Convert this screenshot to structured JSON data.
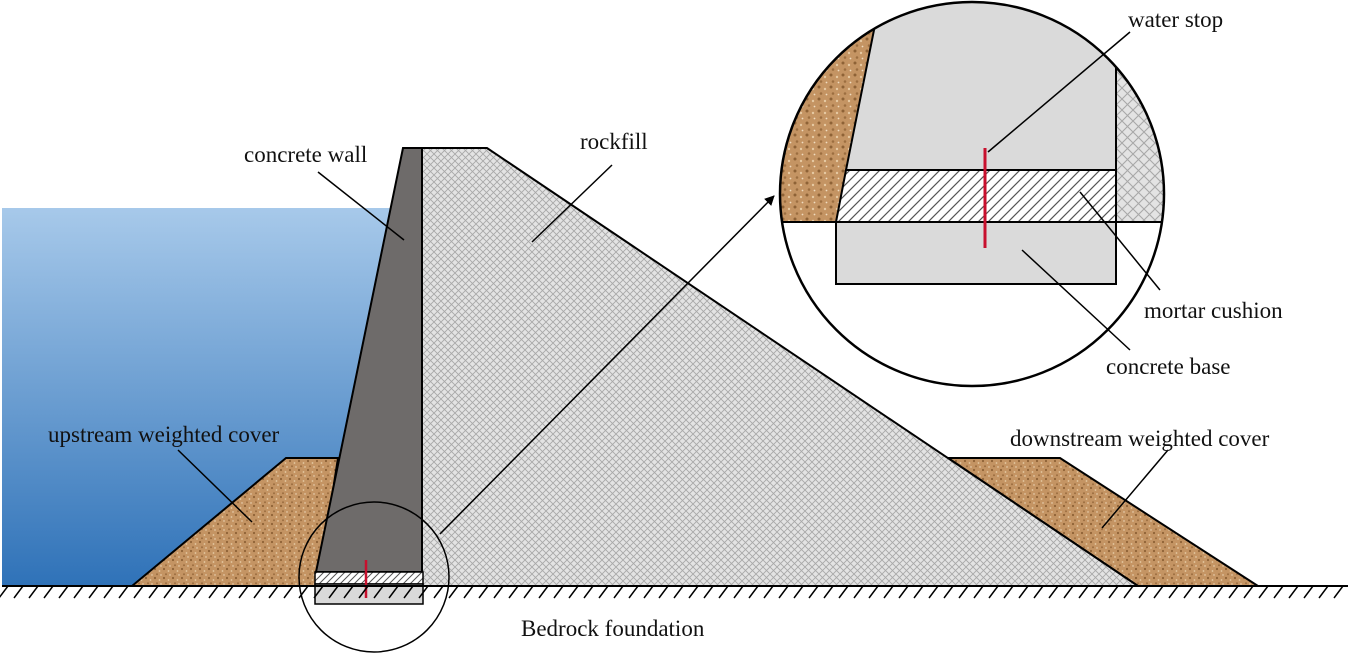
{
  "labels": {
    "concrete_wall": "concrete wall",
    "rockfill": "rockfill",
    "water_stop": "water stop",
    "mortar_cushion": "mortar cushion",
    "concrete_base": "concrete base",
    "upstream_cover": "upstream weighted cover",
    "downstream_cover": "downstream weighted cover",
    "bedrock": "Bedrock foundation"
  },
  "colors": {
    "water_top": "#a7c9ea",
    "water_bottom": "#2f72b8",
    "concrete_wall": "#6e6b6a",
    "rockfill": "#e0e0e0",
    "cover": "#c0935f",
    "concrete_base": "#d9d9d9",
    "water_stop": "#c8102e"
  }
}
